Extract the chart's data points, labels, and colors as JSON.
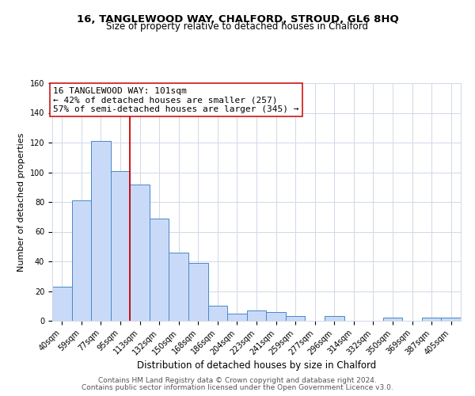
{
  "title": "16, TANGLEWOOD WAY, CHALFORD, STROUD, GL6 8HQ",
  "subtitle": "Size of property relative to detached houses in Chalford",
  "xlabel": "Distribution of detached houses by size in Chalford",
  "ylabel": "Number of detached properties",
  "bar_labels": [
    "40sqm",
    "59sqm",
    "77sqm",
    "95sqm",
    "113sqm",
    "132sqm",
    "150sqm",
    "168sqm",
    "186sqm",
    "204sqm",
    "223sqm",
    "241sqm",
    "259sqm",
    "277sqm",
    "296sqm",
    "314sqm",
    "332sqm",
    "350sqm",
    "369sqm",
    "387sqm",
    "405sqm"
  ],
  "bar_values": [
    23,
    81,
    121,
    101,
    92,
    69,
    46,
    39,
    10,
    5,
    7,
    6,
    3,
    0,
    3,
    0,
    0,
    2,
    0,
    2,
    2
  ],
  "bar_color": "#c9daf8",
  "bar_edge_color": "#4a86c8",
  "vline_x": 3.5,
  "vline_color": "#cc0000",
  "ylim": [
    0,
    160
  ],
  "yticks": [
    0,
    20,
    40,
    60,
    80,
    100,
    120,
    140,
    160
  ],
  "annotation_title": "16 TANGLEWOOD WAY: 101sqm",
  "annotation_line1": "← 42% of detached houses are smaller (257)",
  "annotation_line2": "57% of semi-detached houses are larger (345) →",
  "annotation_box_edge": "#cc0000",
  "footer1": "Contains HM Land Registry data © Crown copyright and database right 2024.",
  "footer2": "Contains public sector information licensed under the Open Government Licence v3.0.",
  "bg_color": "#ffffff",
  "grid_color": "#d0d8e8",
  "title_fontsize": 9.5,
  "subtitle_fontsize": 8.5,
  "xlabel_fontsize": 8.5,
  "ylabel_fontsize": 8,
  "tick_fontsize": 7,
  "annotation_fontsize": 8,
  "footer_fontsize": 6.5
}
